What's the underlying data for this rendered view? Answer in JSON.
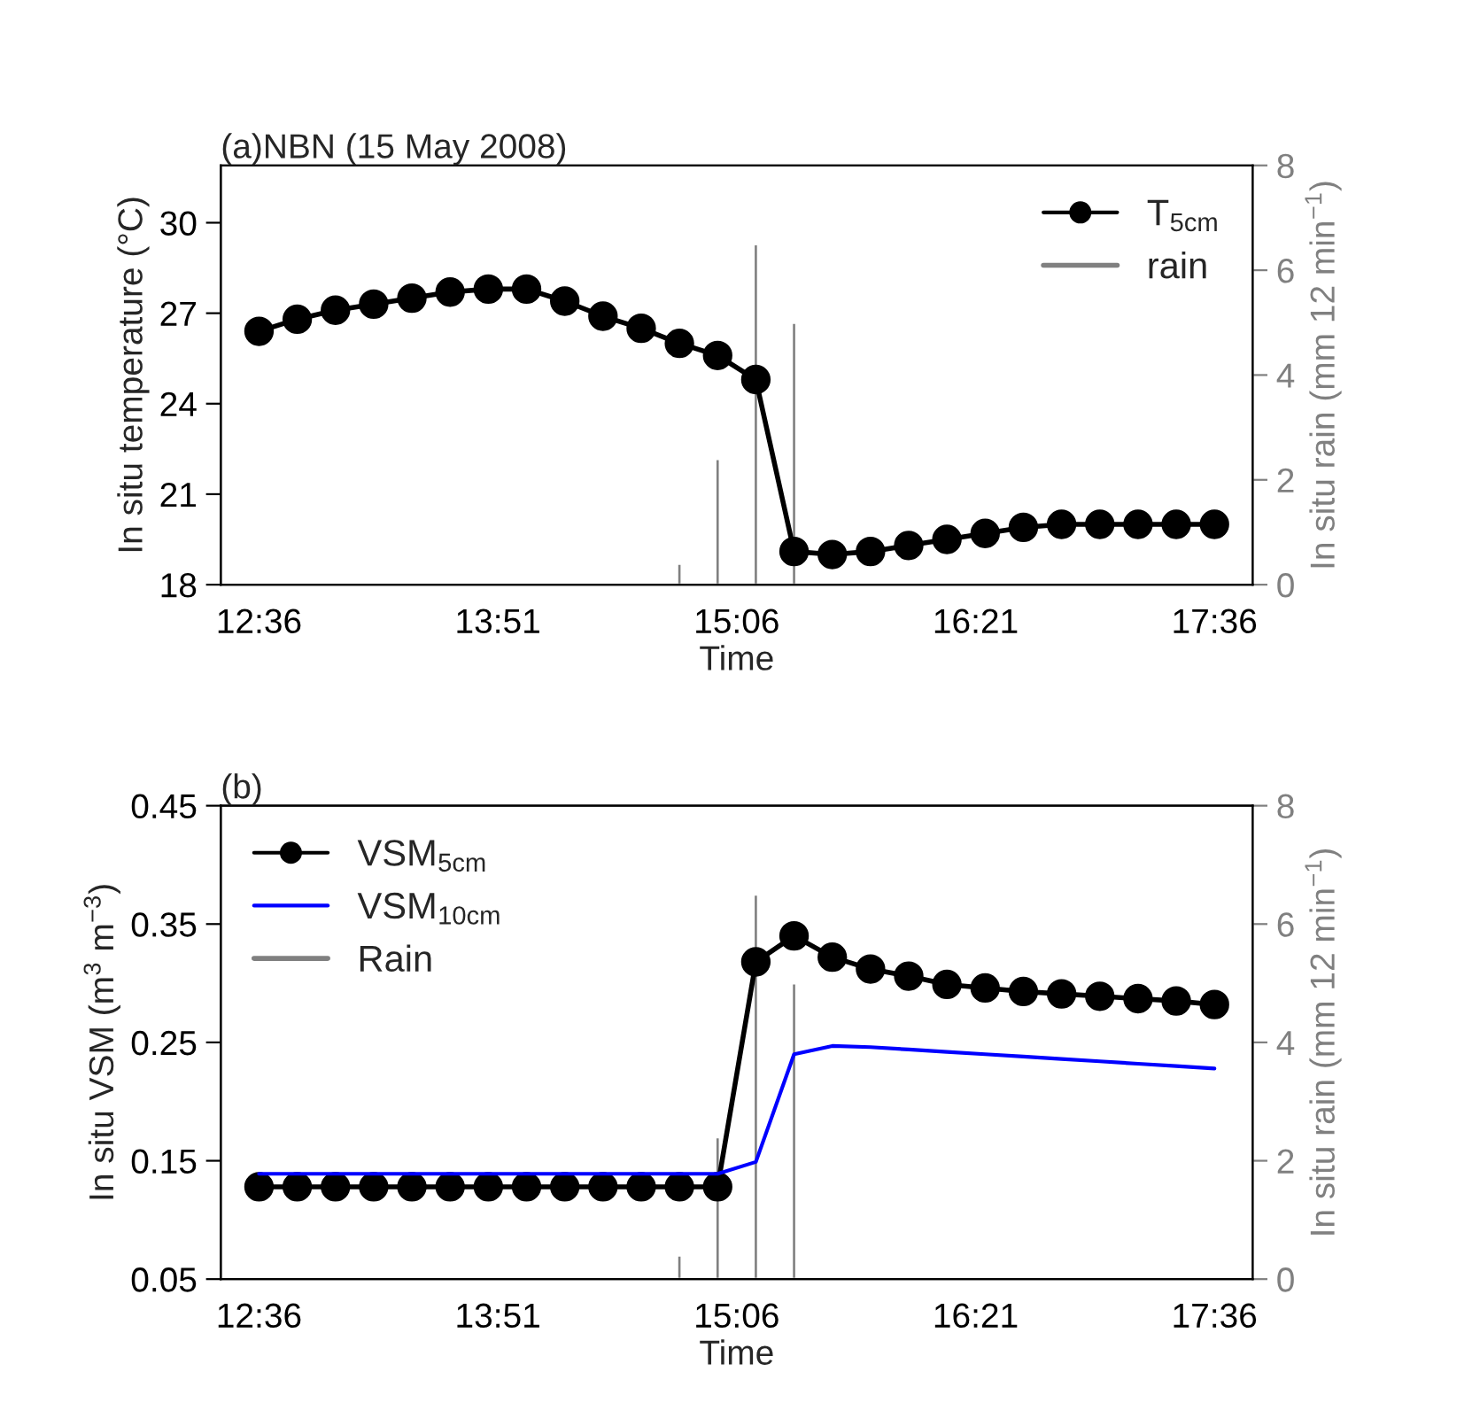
{
  "chart_data": [
    {
      "type": "line",
      "title": "(a)NBN (15 May 2008)",
      "xlabel": "Time",
      "ylabel": "In situ temperature (°C)",
      "y2label": "In situ rain (mm 12 min$^{−1}$)",
      "x": [
        12.6,
        12.8,
        13.0,
        13.2,
        13.4,
        13.6,
        13.8,
        14.0,
        14.2,
        14.4,
        14.6,
        14.8,
        15.0,
        15.2,
        15.4,
        15.6,
        15.8,
        16.0,
        16.2,
        16.4,
        16.6,
        16.8,
        17.0,
        17.2,
        17.4,
        17.6
      ],
      "xlim": [
        12.4,
        17.8
      ],
      "xticks": [
        {
          "value": 12.6,
          "label": "12:36"
        },
        {
          "value": 13.85,
          "label": "13:51"
        },
        {
          "value": 15.1,
          "label": "15:06"
        },
        {
          "value": 16.35,
          "label": "16:21"
        },
        {
          "value": 17.6,
          "label": "17:36"
        }
      ],
      "ylim": [
        18,
        31.9
      ],
      "yticks": [
        18,
        21,
        24,
        27,
        30
      ],
      "y2lim": [
        0,
        8
      ],
      "y2ticks": [
        0,
        2,
        4,
        6,
        8
      ],
      "grid": false,
      "legend": "top right",
      "marker": "circle",
      "line_style": "solid",
      "series": [
        {
          "name": "T$_{5cm}$",
          "color": "#000000",
          "values": [
            26.4,
            26.8,
            27.1,
            27.3,
            27.5,
            27.7,
            27.8,
            27.8,
            27.4,
            26.9,
            26.5,
            26.0,
            25.6,
            24.8,
            19.1,
            19.0,
            19.1,
            19.3,
            19.5,
            19.7,
            19.9,
            20.0,
            20.0,
            20.0,
            20.0,
            20.0
          ]
        },
        {
          "name": "rain",
          "type": "bar",
          "axis": "y2",
          "color": "#808080",
          "x": [
            14.8,
            15.0,
            15.2,
            15.4
          ],
          "values": [
            0.4,
            2.4,
            6.5,
            5.0
          ]
        }
      ]
    },
    {
      "type": "line",
      "title": "(b)",
      "xlabel": "Time",
      "ylabel": "In situ VSM (m$^{3}$ m$^{−3}$)",
      "y2label": "In situ rain (mm 12 min$^{−1}$)",
      "x": [
        12.6,
        12.8,
        13.0,
        13.2,
        13.4,
        13.6,
        13.8,
        14.0,
        14.2,
        14.4,
        14.6,
        14.8,
        15.0,
        15.2,
        15.4,
        15.6,
        15.8,
        16.0,
        16.2,
        16.4,
        16.6,
        16.8,
        17.0,
        17.2,
        17.4,
        17.6
      ],
      "xlim": [
        12.4,
        17.8
      ],
      "xticks": [
        {
          "value": 12.6,
          "label": "12:36"
        },
        {
          "value": 13.85,
          "label": "13:51"
        },
        {
          "value": 15.1,
          "label": "15:06"
        },
        {
          "value": 16.35,
          "label": "16:21"
        },
        {
          "value": 17.6,
          "label": "17:36"
        }
      ],
      "ylim": [
        0.05,
        0.45
      ],
      "yticks": [
        0.05,
        0.15,
        0.25,
        0.35,
        0.45
      ],
      "y2lim": [
        0,
        8
      ],
      "y2ticks": [
        0,
        2,
        4,
        6,
        8
      ],
      "grid": false,
      "legend": "top left",
      "marker": "circle",
      "line_style": "solid",
      "series": [
        {
          "name": "VSM$_{5cm}$",
          "color": "#000000",
          "values": [
            0.128,
            0.128,
            0.128,
            0.128,
            0.128,
            0.128,
            0.128,
            0.128,
            0.128,
            0.128,
            0.128,
            0.128,
            0.128,
            0.318,
            0.34,
            0.322,
            0.312,
            0.306,
            0.299,
            0.296,
            0.293,
            0.291,
            0.289,
            0.287,
            0.285,
            0.282
          ]
        },
        {
          "name": "VSM$_{10cm}$",
          "marker": "none",
          "color": "#0000ff",
          "values": [
            0.139,
            0.139,
            0.139,
            0.139,
            0.139,
            0.139,
            0.139,
            0.139,
            0.139,
            0.139,
            0.139,
            0.139,
            0.139,
            0.149,
            0.24,
            0.247,
            0.246,
            0.244,
            0.242,
            0.24,
            0.238,
            0.236,
            0.234,
            0.232,
            0.23,
            0.228
          ]
        },
        {
          "name": "Rain",
          "type": "bar",
          "axis": "y2",
          "color": "#808080",
          "x": [
            14.8,
            15.0,
            15.2,
            15.4
          ],
          "values": [
            0.4,
            2.4,
            6.5,
            5.0
          ]
        }
      ]
    }
  ]
}
